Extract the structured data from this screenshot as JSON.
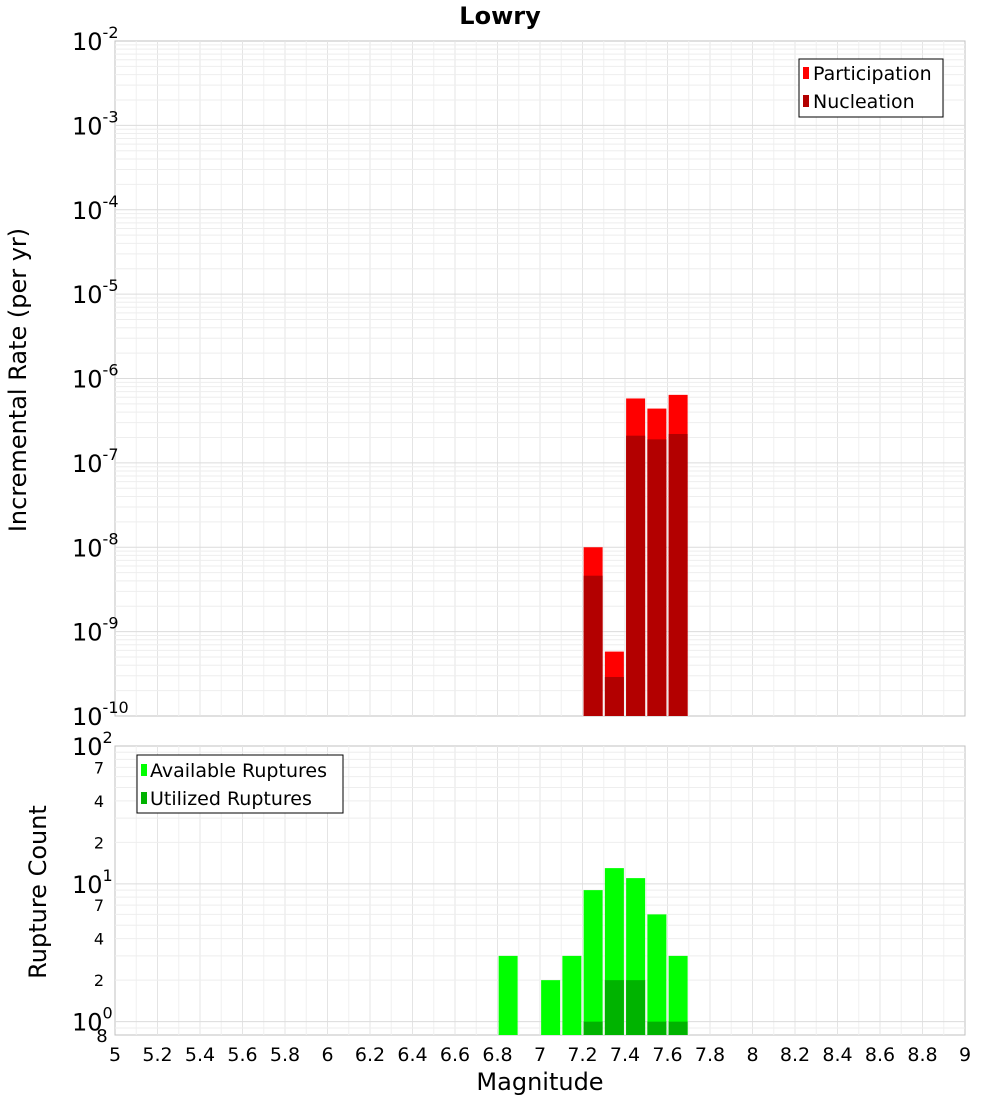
{
  "chart_data": [
    {
      "type": "bar",
      "title": "Lowry",
      "xlabel": "",
      "ylabel": "Incremental Rate (per yr)",
      "yscale": "log",
      "ylim": [
        1e-10,
        0.01
      ],
      "xlim": [
        5,
        9
      ],
      "y_tick_labels": [
        {
          "value": 1e-10,
          "base": "10",
          "exp": "-10"
        },
        {
          "value": 1e-09,
          "base": "10",
          "exp": "-9"
        },
        {
          "value": 1e-08,
          "base": "10",
          "exp": "-8"
        },
        {
          "value": 1e-07,
          "base": "10",
          "exp": "-7"
        },
        {
          "value": 1e-06,
          "base": "10",
          "exp": "-6"
        },
        {
          "value": 1e-05,
          "base": "10",
          "exp": "-5"
        },
        {
          "value": 0.0001,
          "base": "10",
          "exp": "-4"
        },
        {
          "value": 0.001,
          "base": "10",
          "exp": "-3"
        },
        {
          "value": 0.01,
          "base": "10",
          "exp": "-2"
        }
      ],
      "legend_position": "top-right",
      "legend": [
        {
          "label": "Participation",
          "color": "#ff0000"
        },
        {
          "label": "Nucleation",
          "color": "#b30000"
        }
      ],
      "x": [
        7.25,
        7.35,
        7.45,
        7.55,
        7.65
      ],
      "series": [
        {
          "name": "Participation",
          "color": "#ff0000",
          "values": [
            1e-08,
            5.8e-10,
            5.8e-07,
            4.4e-07,
            6.4e-07
          ]
        },
        {
          "name": "Nucleation",
          "color": "#b30000",
          "values": [
            4.6e-09,
            2.9e-10,
            2.1e-07,
            1.9e-07,
            2.2e-07
          ]
        }
      ],
      "grid": true
    },
    {
      "type": "bar",
      "xlabel": "Magnitude",
      "ylabel": "Rupture Count",
      "yscale": "log",
      "ylim": [
        0.8,
        100
      ],
      "xlim": [
        5,
        9
      ],
      "x_ticks": [
        "5",
        "5.2",
        "5.4",
        "5.6",
        "5.8",
        "6",
        "6.2",
        "6.4",
        "6.6",
        "6.8",
        "7",
        "7.2",
        "7.4",
        "7.6",
        "7.8",
        "8",
        "8.2",
        "8.4",
        "8.6",
        "8.8",
        "9"
      ],
      "y_major_tick_labels": [
        {
          "value": 1,
          "base": "10",
          "exp": "0"
        },
        {
          "value": 10,
          "base": "10",
          "exp": "1"
        },
        {
          "value": 100,
          "base": "10",
          "exp": "2"
        }
      ],
      "y_minor_tick_labels": [
        {
          "value": 2,
          "label": "2"
        },
        {
          "value": 4,
          "label": "4"
        },
        {
          "value": 7,
          "label": "7"
        },
        {
          "value": 20,
          "label": "2"
        },
        {
          "value": 40,
          "label": "4"
        },
        {
          "value": 70,
          "label": "7"
        }
      ],
      "y_bottom_label": {
        "value": 0.8,
        "label": "8"
      },
      "legend_position": "top-left",
      "legend": [
        {
          "label": "Available Ruptures",
          "color": "#00ff00"
        },
        {
          "label": "Utilized Ruptures",
          "color": "#00b300"
        }
      ],
      "x": [
        6.85,
        7.05,
        7.15,
        7.25,
        7.35,
        7.45,
        7.55,
        7.65
      ],
      "series": [
        {
          "name": "Available Ruptures",
          "color": "#00ff00",
          "values": [
            3,
            2,
            3,
            9,
            13,
            11,
            6,
            3
          ]
        },
        {
          "name": "Utilized Ruptures",
          "color": "#00b300",
          "values": [
            0,
            0,
            0,
            1,
            2,
            2,
            1,
            1
          ]
        }
      ],
      "grid": true
    }
  ]
}
